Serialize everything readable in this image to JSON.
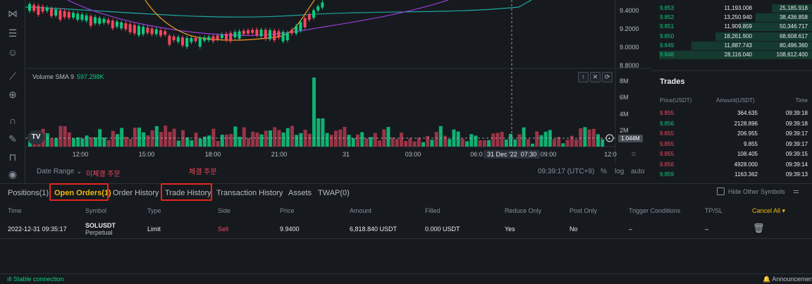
{
  "chart": {
    "volume_label": "Volume SMA 9",
    "volume_value": "597.298K",
    "price_axis": [
      "9.4000",
      "9.2000",
      "9.0000",
      "8.8000"
    ],
    "volume_axis": [
      "8M",
      "6M",
      "4M",
      "2M"
    ],
    "volume_tag": "1.044M",
    "time_axis": [
      "12:00",
      "15:00",
      "18:00",
      "21:00",
      "31",
      "03:00",
      "06:0",
      "09:00",
      "12:0"
    ],
    "crosshair_date": "31 Dec '22",
    "crosshair_time": "07:30",
    "logo": "TV",
    "pane_buttons": [
      "↑",
      "✕",
      "⟳"
    ]
  },
  "chart_footer": {
    "date_range": "Date Range",
    "annotation_open": "미체결 주문",
    "annotation_filled": "체결 주문",
    "clock": "09:39:17 (UTC+9)",
    "percent": "%",
    "log": "log",
    "auto": "auto"
  },
  "order_book": {
    "rows": [
      {
        "price": "9.853",
        "amount": "11,193.008",
        "total": "25,185.918"
      },
      {
        "price": "9.852",
        "amount": "13,250.940",
        "total": "38,436.858"
      },
      {
        "price": "9.851",
        "amount": "11,909.859",
        "total": "50,346.717"
      },
      {
        "price": "9.850",
        "amount": "18,261.900",
        "total": "68,608.617"
      },
      {
        "price": "9.849",
        "amount": "11,887.743",
        "total": "80,496.360"
      },
      {
        "price": "9.848",
        "amount": "28,116.040",
        "total": "108,612.400"
      }
    ]
  },
  "trades": {
    "title": "Trades",
    "headers": {
      "price": "Price(USDT)",
      "amount": "Amount(USDT)",
      "time": "Time"
    },
    "rows": [
      {
        "price": "9.855",
        "side": "sell",
        "amount": "364.635",
        "time": "09:39:18"
      },
      {
        "price": "9.856",
        "side": "buy",
        "amount": "2128.896",
        "time": "09:39:18"
      },
      {
        "price": "9.855",
        "side": "sell",
        "amount": "206.955",
        "time": "09:39:17"
      },
      {
        "price": "9.855",
        "side": "sell",
        "amount": "9.855",
        "time": "09:39:17"
      },
      {
        "price": "9.855",
        "side": "sell",
        "amount": "108.405",
        "time": "09:39:15"
      },
      {
        "price": "9.856",
        "side": "sell",
        "amount": "4928.000",
        "time": "09:39:14"
      },
      {
        "price": "9.859",
        "side": "buy",
        "amount": "1163.362",
        "time": "09:39:13"
      }
    ]
  },
  "tabs": [
    {
      "label": "Positions(1)"
    },
    {
      "label": "Open Orders(1)"
    },
    {
      "label": "Order History"
    },
    {
      "label": "Trade History"
    },
    {
      "label": "Transaction History"
    },
    {
      "label": "Assets"
    },
    {
      "label": "TWAP(0)"
    }
  ],
  "hide_other_symbols": "Hide Other Symbols",
  "table": {
    "headers": [
      "Time",
      "Symbol",
      "Type",
      "Side",
      "Price",
      "Amount",
      "Filled",
      "Reduce Only",
      "Post Only",
      "Trigger Conditions",
      "TP/SL"
    ],
    "cancel_all": "Cancel All",
    "row": {
      "time": "2022-12-31 09:35:17",
      "symbol": "SOLUSDT",
      "symbol_sub": "Perpetual",
      "type": "Limit",
      "side": "Sell",
      "price": "9.9400",
      "amount": "6,818.840 USDT",
      "filled": "0.000 USDT",
      "reduce_only": "Yes",
      "post_only": "No",
      "trigger": "–",
      "tpsl": "–"
    }
  },
  "status": {
    "connection": "Stable connection",
    "announcements": "Announcements"
  },
  "colors": {
    "buy": "#0ecb81",
    "sell": "#f6465d",
    "accent": "#f0b90b",
    "highlight": "#e5261f"
  },
  "icons": [
    "pattern-icon",
    "line-tools-icon",
    "emoji-icon",
    "ruler-icon",
    "zoom-in-icon",
    "magnet-icon",
    "lock-draw-icon",
    "unlock-icon",
    "eye-icon",
    "trash-icon",
    "filter-icon",
    "bell-icon",
    "settings-icon"
  ]
}
